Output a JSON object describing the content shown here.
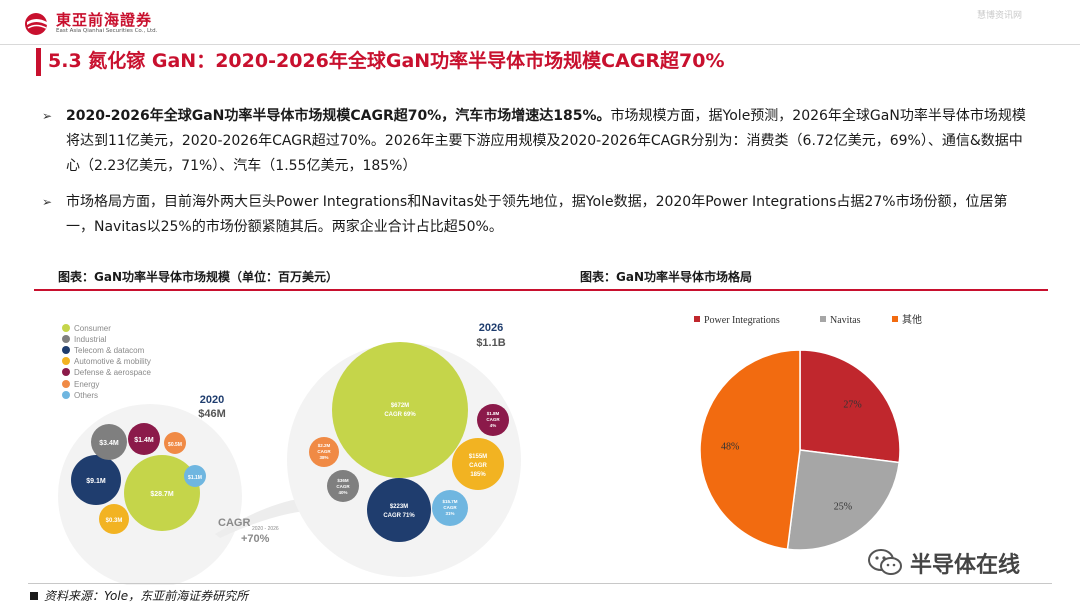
{
  "header": {
    "logo_cn": "東亞前海證券",
    "logo_en": "East Asia Qianhai Securities Co., Ltd.",
    "watermark": "慧博资讯网",
    "title": "5.3 氮化镓 GaN：2020-2026年全球GaN功率半导体市场规模CAGR超70%"
  },
  "body": {
    "para1_bold": "2020-2026年全球GaN功率半导体市场规模CAGR超70%，汽车市场增速达185%。",
    "para1_text": "市场规模方面，据Yole预测，2026年全球GaN功率半导体市场规模将达到11亿美元，2020-2026年CAGR超过70%。2026年主要下游应用规模及2020-2026年CAGR分别为：消费类（6.72亿美元，69%）、通信&数据中心（2.23亿美元，71%）、汽车（1.55亿美元，185%）",
    "para2_text": "市场格局方面，目前海外两大巨头Power Integrations和Navitas处于领先地位，据Yole数据，2020年Power Integrations占据27%市场份额，位居第一，Navitas以25%的市场份额紧随其后。两家企业合计占比超50%。"
  },
  "figures": {
    "fig1_label": "图表：GaN功率半导体市场规模（单位：百万美元）",
    "fig2_label": "图表：GaN功率半导体市场格局"
  },
  "bubble": {
    "legend": [
      {
        "name": "Consumer",
        "color": "#c5d54a"
      },
      {
        "name": "Industrial",
        "color": "#7f7f7f"
      },
      {
        "name": "Telecom & datacom",
        "color": "#1f3d6e"
      },
      {
        "name": "Automotive & mobility",
        "color": "#f2b322"
      },
      {
        "name": "Defense & aerospace",
        "color": "#8b1a4a"
      },
      {
        "name": "Energy",
        "color": "#f08a45"
      },
      {
        "name": "Others",
        "color": "#6fb6e0"
      }
    ],
    "y2020_label": "2020",
    "y2020_value": "$46M",
    "y2026_label": "2026",
    "y2026_value": "$1.1B",
    "cagr_label": "CAGR",
    "cagr_period": "2020 - 2026",
    "cagr_value": "+70%",
    "b2020": {
      "consumer": "$28.7M",
      "telecom": "$9.1M",
      "industrial": "$3.4M",
      "defense": "$1.4M",
      "energy": "$0.5M",
      "others": "$1.1M",
      "automotive": "$0.3M"
    },
    "b2026": {
      "consumer": "$672M",
      "consumer_cagr": "CAGR 69%",
      "telecom": "$223M",
      "telecom_cagr": "CAGR 71%",
      "automotive": "$155M",
      "automotive_cagr": "CAGR",
      "automotive_pct": "185%",
      "industrial": "$36M",
      "industrial_cagr": "CAGR",
      "industrial_pct": "40%",
      "others": "$15.7M",
      "others_cagr": "CAGR",
      "others_pct": "31%",
      "defense": "$1.8M",
      "defense_cagr": "CAGR",
      "defense_pct": "4%",
      "energy": "$2.2M",
      "energy_cagr": "CAGR",
      "energy_pct": "38%"
    }
  },
  "chart_data": {
    "type": "pie",
    "legend_position": "top",
    "slices": [
      {
        "label": "Power Integrations",
        "value": 27,
        "display": "27%",
        "color": "#c0272d"
      },
      {
        "label": "Navitas",
        "value": 25,
        "display": "25%",
        "color": "#a6a6a6"
      },
      {
        "label": "其他",
        "value": 48,
        "display": "48%",
        "color": "#f26b10"
      }
    ]
  },
  "footer": {
    "source": "资料来源：Yole，东亚前海证券研究所",
    "wechat_label": "半导体在线"
  }
}
